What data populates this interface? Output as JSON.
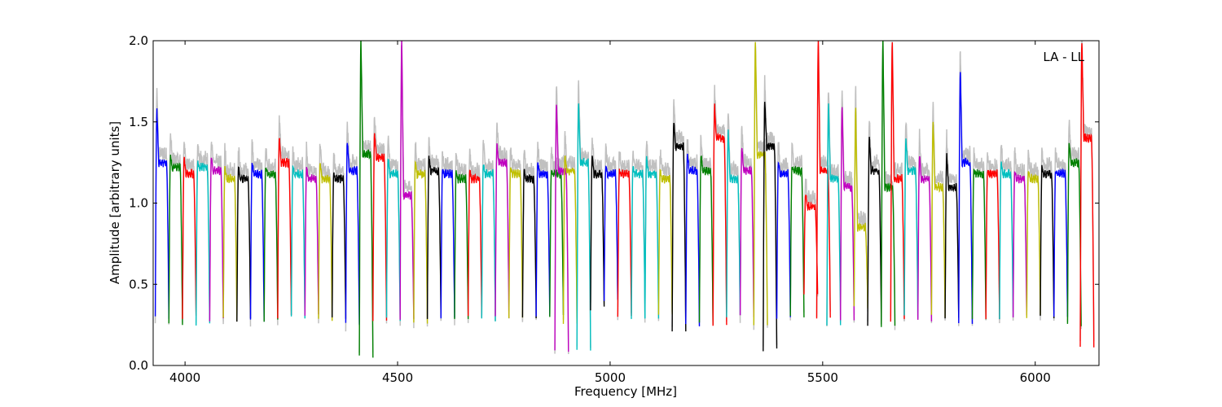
{
  "chart_data": {
    "type": "line",
    "xlabel": "Frequency [MHz]",
    "ylabel": "Amplitude [arbitrary units]",
    "annotation": "LA - LL",
    "xlim": [
      3925,
      6150
    ],
    "ylim": [
      0.0,
      2.0
    ],
    "x_ticks": [
      4000,
      4500,
      5000,
      5500,
      6000
    ],
    "x_tick_labels": [
      "4000",
      "4500",
      "5000",
      "5500",
      "6000"
    ],
    "y_ticks": [
      0.0,
      0.5,
      1.0,
      1.5,
      2.0
    ],
    "y_tick_labels": [
      "0.0",
      "0.5",
      "1.0",
      "1.5",
      "2.0"
    ],
    "grid": false,
    "legend": "none",
    "background_color": "#c0c0c0",
    "color_cycle": [
      "#0000ff",
      "#008000",
      "#ff0000",
      "#00bfbf",
      "#bf00bf",
      "#bfbf00",
      "#000000"
    ],
    "channel_width_mhz": 32,
    "channel_gap_mhz": 1.5,
    "channels": [
      {
        "start": 3930,
        "level": 1.25,
        "peak_left": 1.57,
        "drop": 0.3,
        "color": "#0000ff"
      },
      {
        "start": 3962,
        "level": 1.22,
        "peak_left": 1.3,
        "drop": 0.25,
        "color": "#008000"
      },
      {
        "start": 3994,
        "level": 1.18,
        "peak_left": 1.28,
        "drop": 0.3,
        "color": "#ff0000"
      },
      {
        "start": 4026,
        "level": 1.22,
        "peak_left": 1.25,
        "drop": 0.26,
        "color": "#00bfbf"
      },
      {
        "start": 4058,
        "level": 1.2,
        "peak_left": 1.28,
        "drop": 0.28,
        "color": "#bf00bf"
      },
      {
        "start": 4090,
        "level": 1.15,
        "peak_left": 1.22,
        "drop": 0.28,
        "color": "#bfbf00"
      },
      {
        "start": 4122,
        "level": 1.15,
        "peak_left": 1.22,
        "drop": 0.28,
        "color": "#000000"
      },
      {
        "start": 4154,
        "level": 1.18,
        "peak_left": 1.25,
        "drop": 0.28,
        "color": "#0000ff"
      },
      {
        "start": 4186,
        "level": 1.18,
        "peak_left": 1.22,
        "drop": 0.28,
        "color": "#008000"
      },
      {
        "start": 4218,
        "level": 1.25,
        "peak_left": 1.4,
        "drop": 0.3,
        "color": "#ff0000"
      },
      {
        "start": 4250,
        "level": 1.18,
        "peak_left": 1.22,
        "drop": 0.3,
        "color": "#00bfbf"
      },
      {
        "start": 4282,
        "level": 1.15,
        "peak_left": 1.22,
        "drop": 0.3,
        "color": "#bf00bf"
      },
      {
        "start": 4314,
        "level": 1.15,
        "peak_left": 1.25,
        "drop": 0.28,
        "color": "#bfbf00"
      },
      {
        "start": 4346,
        "level": 1.15,
        "peak_left": 1.18,
        "drop": 0.3,
        "color": "#000000"
      },
      {
        "start": 4378,
        "level": 1.2,
        "peak_left": 1.38,
        "drop": 0.25,
        "color": "#0000ff"
      },
      {
        "start": 4410,
        "level": 1.3,
        "peak_left": 2.0,
        "drop": 0.05,
        "color": "#008000"
      },
      {
        "start": 4442,
        "level": 1.28,
        "peak_left": 1.43,
        "drop": 0.28,
        "color": "#ff0000"
      },
      {
        "start": 4474,
        "level": 1.18,
        "peak_left": 1.28,
        "drop": 0.28,
        "color": "#00bfbf"
      },
      {
        "start": 4506,
        "level": 1.05,
        "peak_left": 2.0,
        "drop": 0.28,
        "color": "#bf00bf"
      },
      {
        "start": 4538,
        "level": 1.18,
        "peak_left": 1.25,
        "drop": 0.27,
        "color": "#bfbf00"
      },
      {
        "start": 4570,
        "level": 1.2,
        "peak_left": 1.28,
        "drop": 0.3,
        "color": "#000000"
      },
      {
        "start": 4602,
        "level": 1.18,
        "peak_left": 1.2,
        "drop": 0.3,
        "color": "#0000ff"
      },
      {
        "start": 4634,
        "level": 1.15,
        "peak_left": 1.2,
        "drop": 0.28,
        "color": "#008000"
      },
      {
        "start": 4666,
        "level": 1.15,
        "peak_left": 1.2,
        "drop": 0.3,
        "color": "#ff0000"
      },
      {
        "start": 4698,
        "level": 1.18,
        "peak_left": 1.25,
        "drop": 0.28,
        "color": "#00bfbf"
      },
      {
        "start": 4730,
        "level": 1.25,
        "peak_left": 1.36,
        "drop": 0.3,
        "color": "#bf00bf"
      },
      {
        "start": 4762,
        "level": 1.18,
        "peak_left": 1.22,
        "drop": 0.3,
        "color": "#bfbf00"
      },
      {
        "start": 4794,
        "level": 1.15,
        "peak_left": 1.2,
        "drop": 0.3,
        "color": "#000000"
      },
      {
        "start": 4826,
        "level": 1.18,
        "peak_left": 1.25,
        "drop": 0.3,
        "color": "#0000ff"
      },
      {
        "start": 4858,
        "level": 1.18,
        "peak_left": 1.2,
        "drop": 0.3,
        "color": "#008000"
      },
      {
        "start": 4870,
        "level": 1.2,
        "peak_left": 1.62,
        "drop": 0.08,
        "color": "#bf00bf"
      },
      {
        "start": 4890,
        "level": 1.2,
        "peak_left": 1.3,
        "drop": 0.25,
        "color": "#bfbf00"
      },
      {
        "start": 4922,
        "level": 1.25,
        "peak_left": 1.62,
        "drop": 0.1,
        "color": "#00bfbf"
      },
      {
        "start": 4954,
        "level": 1.18,
        "peak_left": 1.3,
        "drop": 0.35,
        "color": "#000000"
      },
      {
        "start": 4986,
        "level": 1.18,
        "peak_left": 1.22,
        "drop": 0.4,
        "color": "#0000ff"
      },
      {
        "start": 5018,
        "level": 1.18,
        "peak_left": 1.2,
        "drop": 0.3,
        "color": "#ff0000"
      },
      {
        "start": 5050,
        "level": 1.18,
        "peak_left": 1.22,
        "drop": 0.3,
        "color": "#00bfbf"
      },
      {
        "start": 5082,
        "level": 1.18,
        "peak_left": 1.28,
        "drop": 0.3,
        "color": "#00bfbf"
      },
      {
        "start": 5114,
        "level": 1.15,
        "peak_left": 1.2,
        "drop": 0.3,
        "color": "#bfbf00"
      },
      {
        "start": 5146,
        "level": 1.35,
        "peak_left": 1.5,
        "drop": 0.22,
        "color": "#000000"
      },
      {
        "start": 5178,
        "level": 1.2,
        "peak_left": 1.3,
        "drop": 0.25,
        "color": "#0000ff"
      },
      {
        "start": 5210,
        "level": 1.2,
        "peak_left": 1.3,
        "drop": 0.25,
        "color": "#008000"
      },
      {
        "start": 5242,
        "level": 1.4,
        "peak_left": 1.6,
        "drop": 0.25,
        "color": "#ff0000"
      },
      {
        "start": 5274,
        "level": 1.15,
        "peak_left": 1.45,
        "drop": 0.3,
        "color": "#00bfbf"
      },
      {
        "start": 5306,
        "level": 1.2,
        "peak_left": 1.35,
        "drop": 0.3,
        "color": "#bf00bf"
      },
      {
        "start": 5338,
        "level": 1.3,
        "peak_left": 2.0,
        "drop": 0.25,
        "color": "#bfbf00"
      },
      {
        "start": 5360,
        "level": 1.35,
        "peak_left": 1.63,
        "drop": 0.09,
        "color": "#000000"
      },
      {
        "start": 5392,
        "level": 1.18,
        "peak_left": 1.25,
        "drop": 0.3,
        "color": "#0000ff"
      },
      {
        "start": 5424,
        "level": 1.2,
        "peak_left": 1.22,
        "drop": 0.3,
        "color": "#008000"
      },
      {
        "start": 5456,
        "level": 0.98,
        "peak_left": 1.05,
        "drop": 0.45,
        "color": "#ff0000"
      },
      {
        "start": 5486,
        "level": 1.2,
        "peak_left": 2.0,
        "drop": 0.3,
        "color": "#ff0000"
      },
      {
        "start": 5510,
        "level": 1.15,
        "peak_left": 1.6,
        "drop": 0.25,
        "color": "#00bfbf"
      },
      {
        "start": 5542,
        "level": 1.1,
        "peak_left": 1.6,
        "drop": 0.28,
        "color": "#bf00bf"
      },
      {
        "start": 5574,
        "level": 0.85,
        "peak_left": 1.58,
        "drop": 0.35,
        "color": "#bfbf00"
      },
      {
        "start": 5606,
        "level": 1.2,
        "peak_left": 1.4,
        "drop": 0.25,
        "color": "#000000"
      },
      {
        "start": 5638,
        "level": 1.1,
        "peak_left": 2.0,
        "drop": 0.25,
        "color": "#008000"
      },
      {
        "start": 5660,
        "level": 1.15,
        "peak_left": 2.0,
        "drop": 0.28,
        "color": "#ff0000"
      },
      {
        "start": 5692,
        "level": 1.2,
        "peak_left": 1.4,
        "drop": 0.3,
        "color": "#00bfbf"
      },
      {
        "start": 5724,
        "level": 1.15,
        "peak_left": 1.3,
        "drop": 0.28,
        "color": "#bf00bf"
      },
      {
        "start": 5756,
        "level": 1.1,
        "peak_left": 1.5,
        "drop": 0.3,
        "color": "#bfbf00"
      },
      {
        "start": 5788,
        "level": 1.1,
        "peak_left": 1.3,
        "drop": 0.28,
        "color": "#000000"
      },
      {
        "start": 5820,
        "level": 1.25,
        "peak_left": 1.82,
        "drop": 0.25,
        "color": "#0000ff"
      },
      {
        "start": 5852,
        "level": 1.18,
        "peak_left": 1.2,
        "drop": 0.28,
        "color": "#008000"
      },
      {
        "start": 5884,
        "level": 1.18,
        "peak_left": 1.2,
        "drop": 0.3,
        "color": "#ff0000"
      },
      {
        "start": 5916,
        "level": 1.18,
        "peak_left": 1.25,
        "drop": 0.3,
        "color": "#00bfbf"
      },
      {
        "start": 5948,
        "level": 1.15,
        "peak_left": 1.2,
        "drop": 0.3,
        "color": "#bf00bf"
      },
      {
        "start": 5980,
        "level": 1.15,
        "peak_left": 1.2,
        "drop": 0.3,
        "color": "#bfbf00"
      },
      {
        "start": 6012,
        "level": 1.18,
        "peak_left": 1.22,
        "drop": 0.3,
        "color": "#000000"
      },
      {
        "start": 6044,
        "level": 1.18,
        "peak_left": 1.2,
        "drop": 0.3,
        "color": "#0000ff"
      },
      {
        "start": 6076,
        "level": 1.25,
        "peak_left": 1.38,
        "drop": 0.25,
        "color": "#008000"
      },
      {
        "start": 6106,
        "level": 1.4,
        "peak_left": 2.0,
        "drop": 0.12,
        "color": "#ff0000"
      }
    ]
  }
}
